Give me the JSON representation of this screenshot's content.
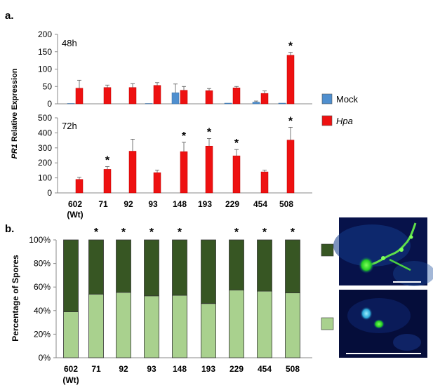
{
  "panel_labels": {
    "a": "a.",
    "b": "b."
  },
  "colors": {
    "mock": "#4f8fcf",
    "hpa": "#ee1111",
    "dark_green": "#375623",
    "light_green": "#a9d18e",
    "axis": "#888888"
  },
  "chart_data": [
    {
      "type": "bar",
      "panel": "a",
      "subplot_label": "48h",
      "ylabel_italic": "PR1",
      "ylabel_rest": " Relative Expression",
      "ylim": [
        0,
        200
      ],
      "yticks": [
        0,
        50,
        100,
        150,
        200
      ],
      "categories": [
        "602",
        "71",
        "92",
        "93",
        "148",
        "193",
        "229",
        "454",
        "508"
      ],
      "series": [
        {
          "name": "Mock",
          "values": [
            1,
            0,
            0,
            1,
            32,
            0,
            2,
            5,
            2
          ],
          "errors": [
            0,
            0,
            0,
            0,
            25,
            0,
            0,
            3,
            0
          ]
        },
        {
          "name": "Hpa",
          "values": [
            45,
            47,
            47,
            53,
            39,
            38,
            46,
            30,
            140
          ],
          "errors": [
            23,
            7,
            11,
            8,
            11,
            6,
            4,
            7,
            8
          ]
        }
      ],
      "significance": [
        "",
        "",
        "",
        "",
        "",
        "",
        "",
        "",
        "*"
      ]
    },
    {
      "type": "bar",
      "panel": "a",
      "subplot_label": "72h",
      "ylim": [
        0,
        500
      ],
      "yticks": [
        0,
        100,
        200,
        300,
        400,
        500
      ],
      "categories": [
        "602",
        "71",
        "92",
        "93",
        "148",
        "193",
        "229",
        "454",
        "508"
      ],
      "category_sublabels": [
        "(Wt)",
        "",
        "",
        "",
        "",
        "",
        "",
        "",
        ""
      ],
      "series": [
        {
          "name": "Mock",
          "values": [
            0,
            0,
            0,
            0,
            0,
            0,
            0,
            0,
            0
          ]
        },
        {
          "name": "Hpa",
          "values": [
            90,
            157,
            278,
            135,
            275,
            312,
            247,
            140,
            352
          ],
          "errors": [
            14,
            18,
            80,
            17,
            62,
            50,
            42,
            12,
            85
          ]
        }
      ],
      "significance": [
        "",
        "*",
        "",
        "",
        "*",
        "*",
        "*",
        "",
        "*"
      ],
      "legend": [
        "Mock",
        "Hpa"
      ],
      "legend_position": "right"
    },
    {
      "type": "bar",
      "stacked": true,
      "panel": "b",
      "ylabel": "Percentage of Spores",
      "ylim": [
        0,
        100
      ],
      "yticks": [
        "0%",
        "20%",
        "40%",
        "60%",
        "80%",
        "100%"
      ],
      "categories": [
        "602",
        "71",
        "92",
        "93",
        "148",
        "193",
        "229",
        "454",
        "508"
      ],
      "category_sublabels": [
        "(Wt)",
        "",
        "",
        "",
        "",
        "",
        "",
        "",
        ""
      ],
      "series": [
        {
          "values": [
            39,
            54,
            55.5,
            52.5,
            53,
            46,
            57.5,
            56.5,
            55
          ]
        },
        {
          "values": [
            61,
            46,
            44.5,
            47.5,
            47,
            54,
            42.5,
            43.5,
            45
          ]
        }
      ],
      "significance": [
        "",
        "*",
        "*",
        "*",
        "*",
        "",
        "*",
        "*",
        "*"
      ],
      "legend_position": "right, with micrograph swatches"
    }
  ]
}
